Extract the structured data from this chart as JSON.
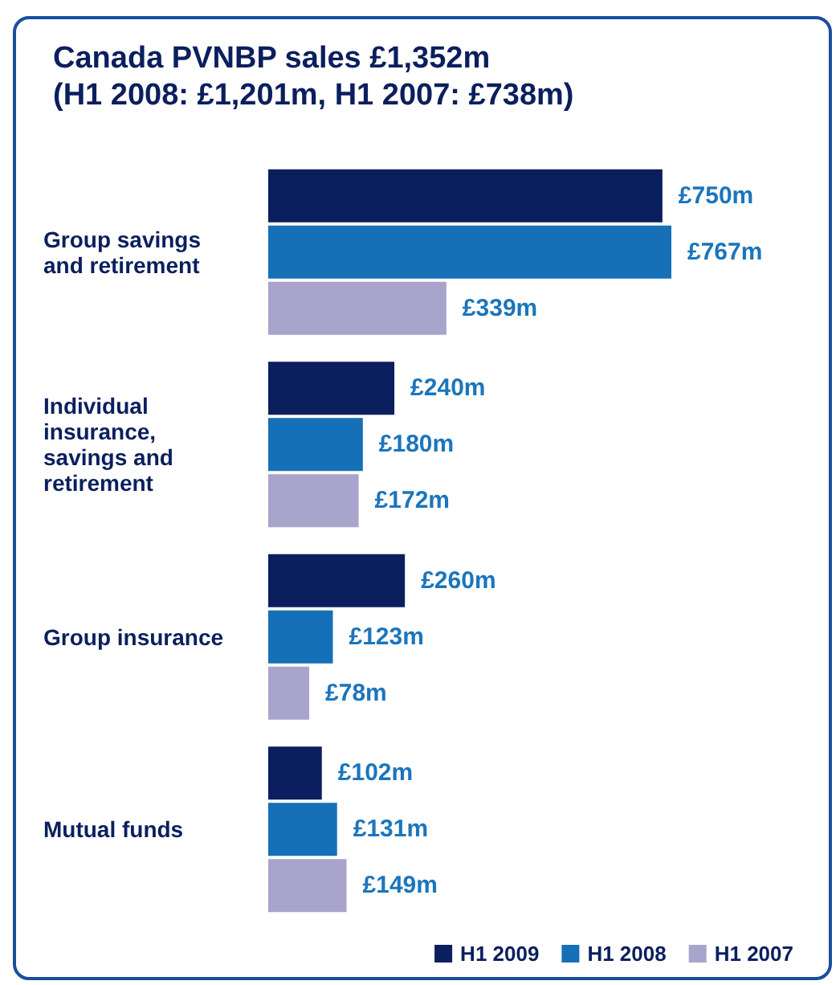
{
  "chart_data": {
    "type": "bar",
    "orientation": "horizontal",
    "title": "Canada PVNBP sales £1,352m",
    "subtitle": "(H1 2008: £1,201m, H1 2007: £738m)",
    "categories": [
      "Group savings and retirement",
      "Individual insurance, savings and retirement",
      "Group insurance",
      "Mutual funds"
    ],
    "series": [
      {
        "name": "H1 2009",
        "color": "#0b1f5e",
        "values": [
          750,
          240,
          260,
          102
        ],
        "value_labels": [
          "£750m",
          "£240m",
          "£260m",
          "£102m"
        ]
      },
      {
        "name": "H1 2008",
        "color": "#1570b8",
        "values": [
          767,
          180,
          123,
          131
        ],
        "value_labels": [
          "£767m",
          "£180m",
          "£123m",
          "£131m"
        ]
      },
      {
        "name": "H1 2007",
        "color": "#a8a4cc",
        "values": [
          339,
          172,
          78,
          149
        ],
        "value_labels": [
          "£339m",
          "£172m",
          "£78m",
          "£149m"
        ]
      }
    ],
    "legend": "bottom right"
  }
}
